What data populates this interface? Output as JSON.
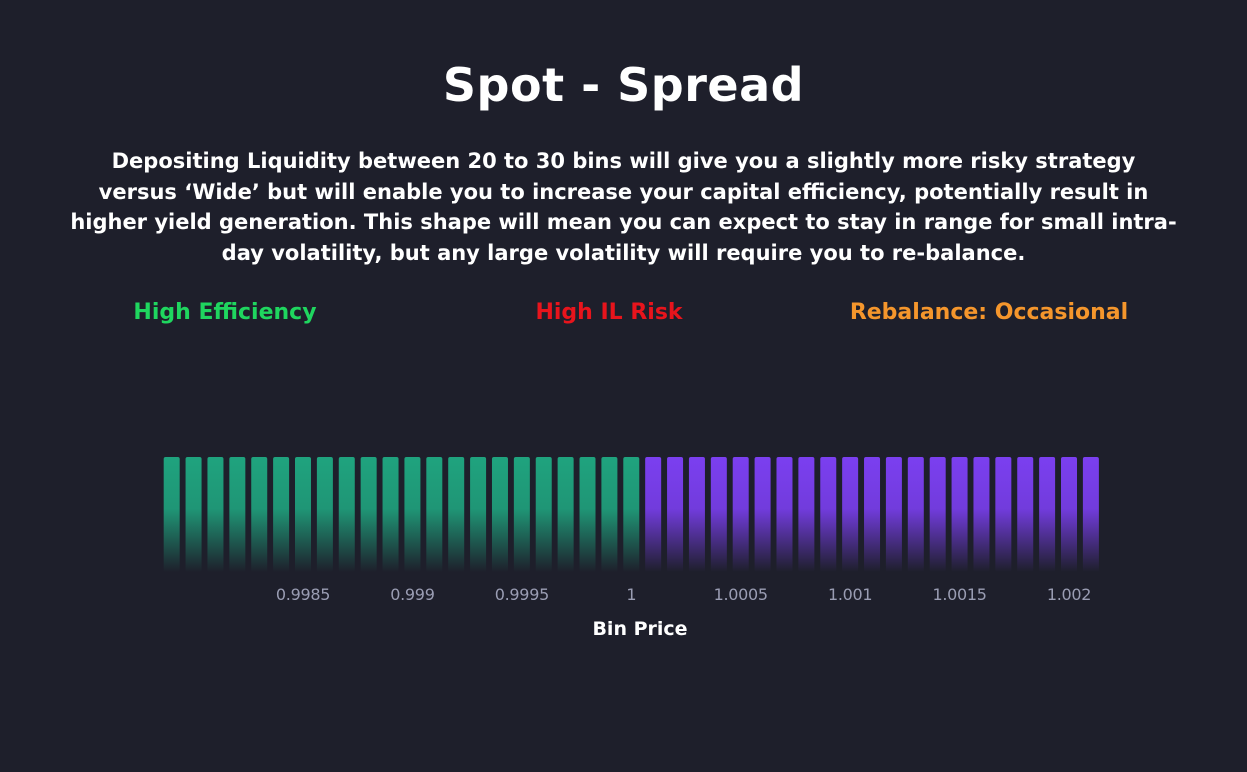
{
  "header": {
    "title": "Spot - Spread",
    "description": "Depositing Liquidity between 20 to 30 bins will give you a slightly more risky strategy versus ‘Wide’ but will enable you to increase your capital efficiency, potentially result in higher yield generation. This shape will mean you can expect to stay in range for small intra-day volatility, but any large volatility will require you to re-balance."
  },
  "metrics": {
    "efficiency": {
      "label": "High Efficiency",
      "color": "#1fd65f"
    },
    "risk": {
      "label": "High IL Risk",
      "color": "#e8141c"
    },
    "rebalance": {
      "label": "Rebalance: Occasional",
      "color": "#f5962c"
    }
  },
  "colors": {
    "background": "#1e1f2b",
    "text": "#ffffff",
    "tick_text": "#9a9db3",
    "bin_left": "#1fa37e",
    "bin_right": "#7b3ff0"
  },
  "chart_data": {
    "type": "bar",
    "title": "",
    "xlabel": "Bin Price",
    "ylabel": "",
    "x_ticks": [
      "0.9985",
      "0.999",
      "0.9995",
      "1",
      "1.0005",
      "1.001",
      "1.0015",
      "1.002"
    ],
    "x_tick_values": [
      0.9985,
      0.999,
      0.9995,
      1,
      1.0005,
      1.001,
      1.0015,
      1.002
    ],
    "bin_step": 0.0001,
    "series": [
      {
        "side": "below-active-price",
        "color": "#1fa37e",
        "bin_prices": [
          0.9979,
          0.998,
          0.9981,
          0.9982,
          0.9983,
          0.9984,
          0.9985,
          0.9986,
          0.9987,
          0.9988,
          0.9989,
          0.999,
          0.9991,
          0.9992,
          0.9993,
          0.9994,
          0.9995,
          0.9996,
          0.9997,
          0.9998,
          0.9999,
          1.0
        ],
        "values": [
          1,
          1,
          1,
          1,
          1,
          1,
          1,
          1,
          1,
          1,
          1,
          1,
          1,
          1,
          1,
          1,
          1,
          1,
          1,
          1,
          1,
          1
        ]
      },
      {
        "side": "above-active-price",
        "color": "#7b3ff0",
        "bin_prices": [
          1.0001,
          1.0002,
          1.0003,
          1.0004,
          1.0005,
          1.0006,
          1.0007,
          1.0008,
          1.0009,
          1.001,
          1.0011,
          1.0012,
          1.0013,
          1.0014,
          1.0015,
          1.0016,
          1.0017,
          1.0018,
          1.0019,
          1.002,
          1.0021
        ],
        "values": [
          1,
          1,
          1,
          1,
          1,
          1,
          1,
          1,
          1,
          1,
          1,
          1,
          1,
          1,
          1,
          1,
          1,
          1,
          1,
          1,
          1
        ]
      }
    ],
    "legend": "none",
    "grid": false
  }
}
